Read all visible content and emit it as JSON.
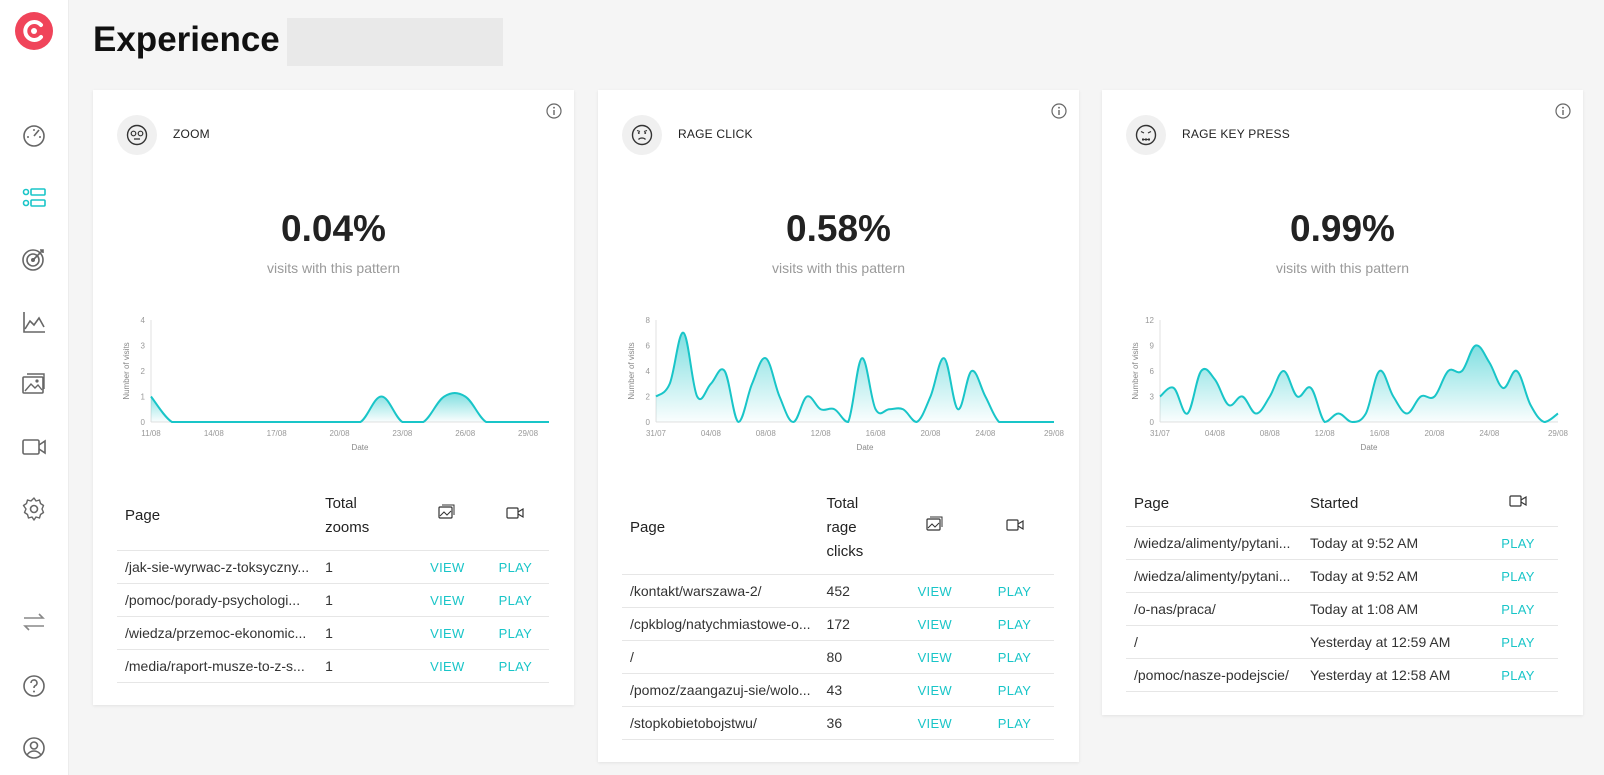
{
  "page": {
    "title": "Experience"
  },
  "theme": {
    "accent": "#19c5c8",
    "logo": "#f0445a"
  },
  "sidebar": {
    "items": [
      {
        "icon": "dashboard-icon"
      },
      {
        "icon": "sessions-list-icon",
        "active": true
      },
      {
        "icon": "target-icon"
      },
      {
        "icon": "area-chart-icon"
      },
      {
        "icon": "heatmap-image-icon"
      },
      {
        "icon": "video-camera-icon"
      },
      {
        "icon": "gear-icon"
      },
      {
        "icon": "swap-arrows-icon"
      },
      {
        "icon": "help-icon"
      },
      {
        "icon": "user-icon"
      }
    ]
  },
  "cards": [
    {
      "title": "ZOOM",
      "value": "0.04%",
      "subtitle": "visits with this pattern",
      "chart_data": {
        "type": "area",
        "xlabel": "Date",
        "ylabel": "Number of visits",
        "ylim": [
          0,
          4
        ],
        "yticks": [
          "0",
          "1",
          "2",
          "3",
          "4"
        ],
        "xticks": [
          "11/08",
          "14/08",
          "17/08",
          "20/08",
          "23/08",
          "26/08",
          "29/08"
        ],
        "x": [
          "11/08",
          "12/08",
          "13/08",
          "14/08",
          "15/08",
          "16/08",
          "17/08",
          "18/08",
          "19/08",
          "20/08",
          "21/08",
          "22/08",
          "23/08",
          "24/08",
          "25/08",
          "26/08",
          "27/08",
          "28/08",
          "29/08",
          "30/08"
        ],
        "values": [
          1,
          0,
          0,
          0,
          0,
          0,
          0,
          0,
          0,
          0,
          0,
          1,
          0,
          0,
          1,
          1,
          0,
          0,
          0,
          0
        ]
      },
      "table": {
        "headers": [
          "Page",
          "Total zooms",
          "",
          ""
        ],
        "rows": [
          {
            "page": "/jak-sie-wyrwac-z-toksyczny...",
            "count": "1",
            "view": "VIEW",
            "play": "PLAY"
          },
          {
            "page": "/pomoc/porady-psychologi...",
            "count": "1",
            "view": "VIEW",
            "play": "PLAY"
          },
          {
            "page": "/wiedza/przemoc-ekonomic...",
            "count": "1",
            "view": "VIEW",
            "play": "PLAY"
          },
          {
            "page": "/media/raport-musze-to-z-s...",
            "count": "1",
            "view": "VIEW",
            "play": "PLAY"
          }
        ]
      }
    },
    {
      "title": "RAGE CLICK",
      "value": "0.58%",
      "subtitle": "visits with this pattern",
      "chart_data": {
        "type": "area",
        "xlabel": "Date",
        "ylabel": "Number of visits",
        "ylim": [
          0,
          8
        ],
        "yticks": [
          "0",
          "2",
          "4",
          "6",
          "8"
        ],
        "xticks": [
          "31/07",
          "04/08",
          "08/08",
          "12/08",
          "16/08",
          "20/08",
          "24/08",
          "29/08"
        ],
        "x": [
          "31/07",
          "01/08",
          "02/08",
          "03/08",
          "04/08",
          "05/08",
          "06/08",
          "07/08",
          "08/08",
          "09/08",
          "10/08",
          "11/08",
          "12/08",
          "13/08",
          "14/08",
          "15/08",
          "16/08",
          "17/08",
          "18/08",
          "19/08",
          "20/08",
          "21/08",
          "22/08",
          "23/08",
          "24/08",
          "25/08",
          "26/08",
          "27/08",
          "28/08",
          "29/08"
        ],
        "values": [
          2,
          3,
          7,
          2,
          3,
          4,
          0,
          3,
          5,
          2,
          0,
          2,
          1,
          1,
          0,
          5,
          1,
          1,
          1,
          0,
          2,
          5,
          1,
          4,
          2,
          0,
          0,
          0,
          0,
          0
        ]
      },
      "table": {
        "headers": [
          "Page",
          "Total rage clicks",
          "",
          ""
        ],
        "rows": [
          {
            "page": "/kontakt/warszawa-2/",
            "count": "452",
            "view": "VIEW",
            "play": "PLAY"
          },
          {
            "page": "/cpkblog/natychmiastowe-o...",
            "count": "172",
            "view": "VIEW",
            "play": "PLAY"
          },
          {
            "page": "/",
            "count": "80",
            "view": "VIEW",
            "play": "PLAY"
          },
          {
            "page": "/pomoz/zaangazuj-sie/wolo...",
            "count": "43",
            "view": "VIEW",
            "play": "PLAY"
          },
          {
            "page": "/stopkobietobojstwu/",
            "count": "36",
            "view": "VIEW",
            "play": "PLAY"
          }
        ]
      }
    },
    {
      "title": "RAGE KEY PRESS",
      "value": "0.99%",
      "subtitle": "visits with this pattern",
      "chart_data": {
        "type": "area",
        "xlabel": "Date",
        "ylabel": "Number of visits",
        "ylim": [
          0,
          12
        ],
        "yticks": [
          "0",
          "3",
          "6",
          "9",
          "12"
        ],
        "xticks": [
          "31/07",
          "04/08",
          "08/08",
          "12/08",
          "16/08",
          "20/08",
          "24/08",
          "29/08"
        ],
        "x": [
          "31/07",
          "01/08",
          "02/08",
          "03/08",
          "04/08",
          "05/08",
          "06/08",
          "07/08",
          "08/08",
          "09/08",
          "10/08",
          "11/08",
          "12/08",
          "13/08",
          "14/08",
          "15/08",
          "16/08",
          "17/08",
          "18/08",
          "19/08",
          "20/08",
          "21/08",
          "22/08",
          "23/08",
          "24/08",
          "25/08",
          "26/08",
          "27/08",
          "28/08",
          "29/08"
        ],
        "values": [
          3,
          4,
          1,
          6,
          5,
          2,
          3,
          1,
          3,
          6,
          3,
          4,
          0,
          1,
          0,
          1,
          6,
          3,
          1,
          3,
          3,
          6,
          6,
          9,
          7,
          4,
          6,
          2,
          0,
          1
        ]
      },
      "table": {
        "headers": [
          "Page",
          "Started",
          ""
        ],
        "rows": [
          {
            "page": "/wiedza/alimenty/pytani...",
            "started": "Today at 9:52 AM",
            "play": "PLAY"
          },
          {
            "page": "/wiedza/alimenty/pytani...",
            "started": "Today at 9:52 AM",
            "play": "PLAY"
          },
          {
            "page": "/o-nas/praca/",
            "started": "Today at 1:08 AM",
            "play": "PLAY"
          },
          {
            "page": "/",
            "started": "Yesterday at 12:59 AM",
            "play": "PLAY"
          },
          {
            "page": "/pomoc/nasze-podejscie/",
            "started": "Yesterday at 12:58 AM",
            "play": "PLAY"
          }
        ]
      }
    }
  ]
}
